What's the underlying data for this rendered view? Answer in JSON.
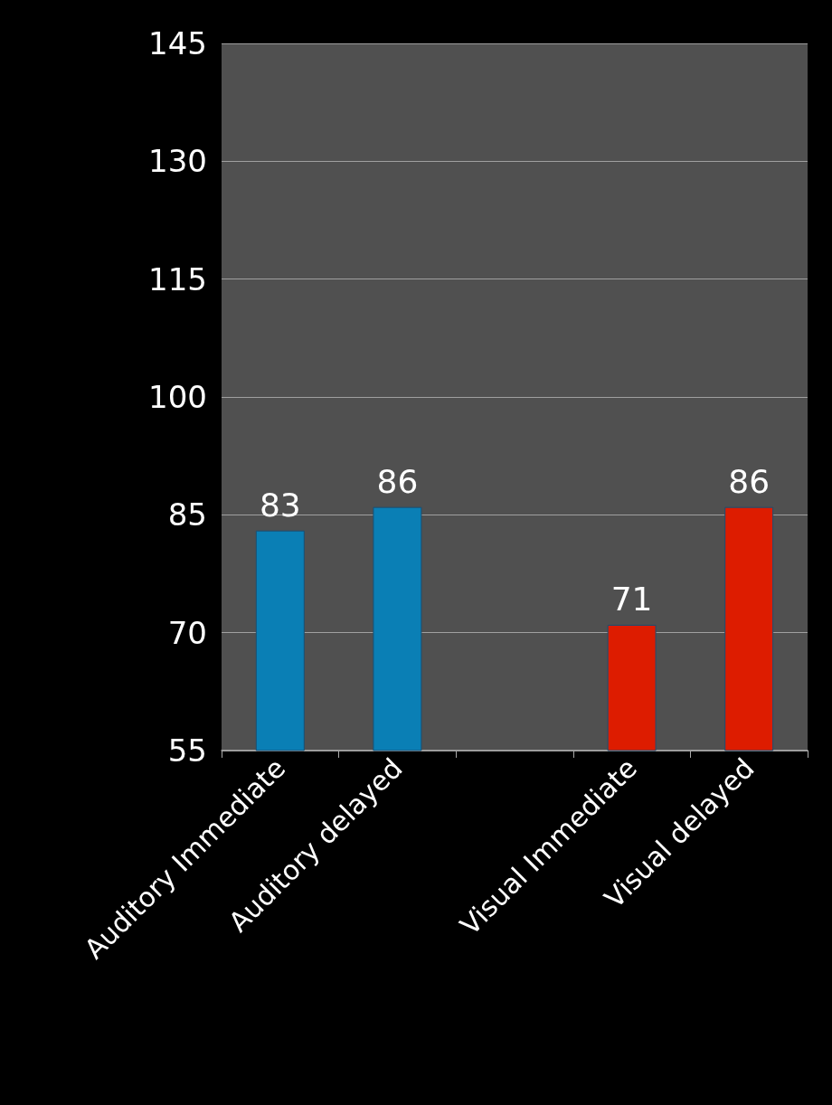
{
  "chart_data": {
    "type": "bar",
    "categories": [
      "Auditory Immediate",
      "Auditory delayed",
      null,
      "Visual Immediate",
      "Visual delayed"
    ],
    "values": [
      83,
      86,
      null,
      71,
      86
    ],
    "colors": [
      "#0a7fb5",
      "#0a7fb5",
      "#0a7fb5",
      "#dd1c00",
      "#dd1c00"
    ],
    "ylim": [
      55,
      145
    ],
    "yticks": [
      55,
      70,
      85,
      100,
      115,
      130,
      145
    ],
    "grid": "y",
    "data_labels": true
  }
}
